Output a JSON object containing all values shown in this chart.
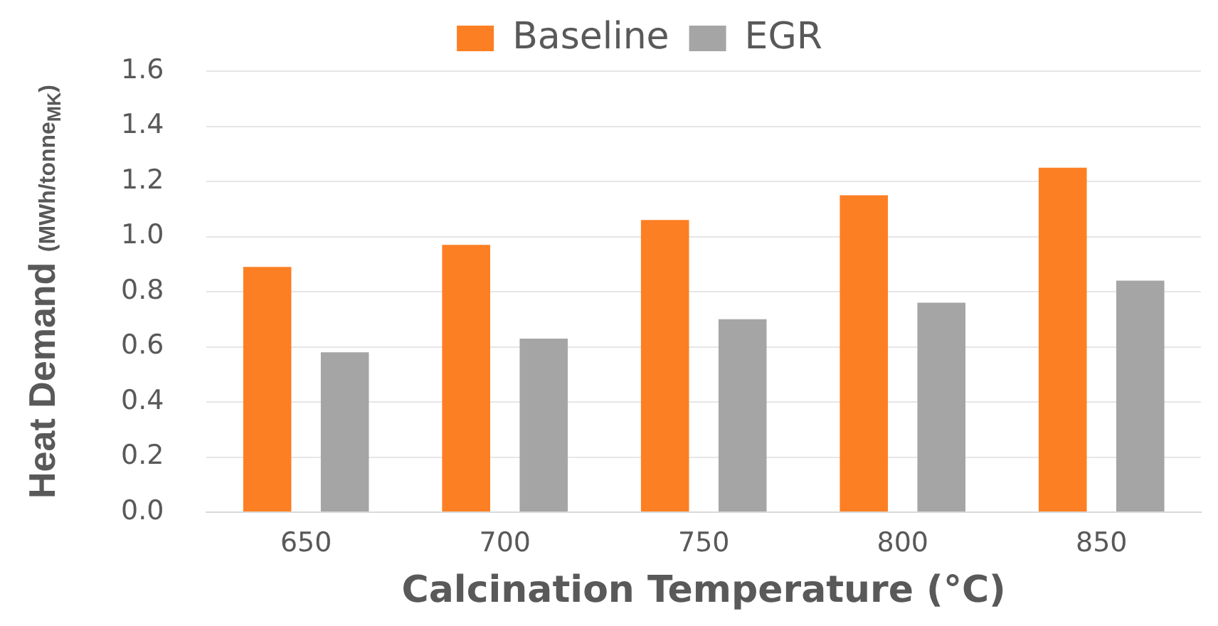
{
  "chart_data": {
    "type": "bar",
    "xlabel": "Calcination Temperature (°C)",
    "ylabel": "Heat Demand (MWh/tonne$_{MK}$)",
    "categories": [
      "650",
      "700",
      "750",
      "800",
      "850"
    ],
    "series": [
      {
        "name": "Baseline",
        "color": "#fd7f23",
        "values": [
          0.89,
          0.97,
          1.06,
          1.15,
          1.25
        ]
      },
      {
        "name": "EGR",
        "color": "#a5a5a5",
        "values": [
          0.58,
          0.63,
          0.7,
          0.76,
          0.84
        ]
      }
    ],
    "ylim": [
      0,
      1.6
    ],
    "yticks": [
      {
        "value": 0,
        "label": "0.0"
      },
      0.2,
      0.4,
      0.6,
      0.8,
      {
        "value": 1,
        "label": "1.0"
      },
      1.2,
      1.4,
      1.6
    ],
    "grid": "y",
    "legend": "top"
  }
}
